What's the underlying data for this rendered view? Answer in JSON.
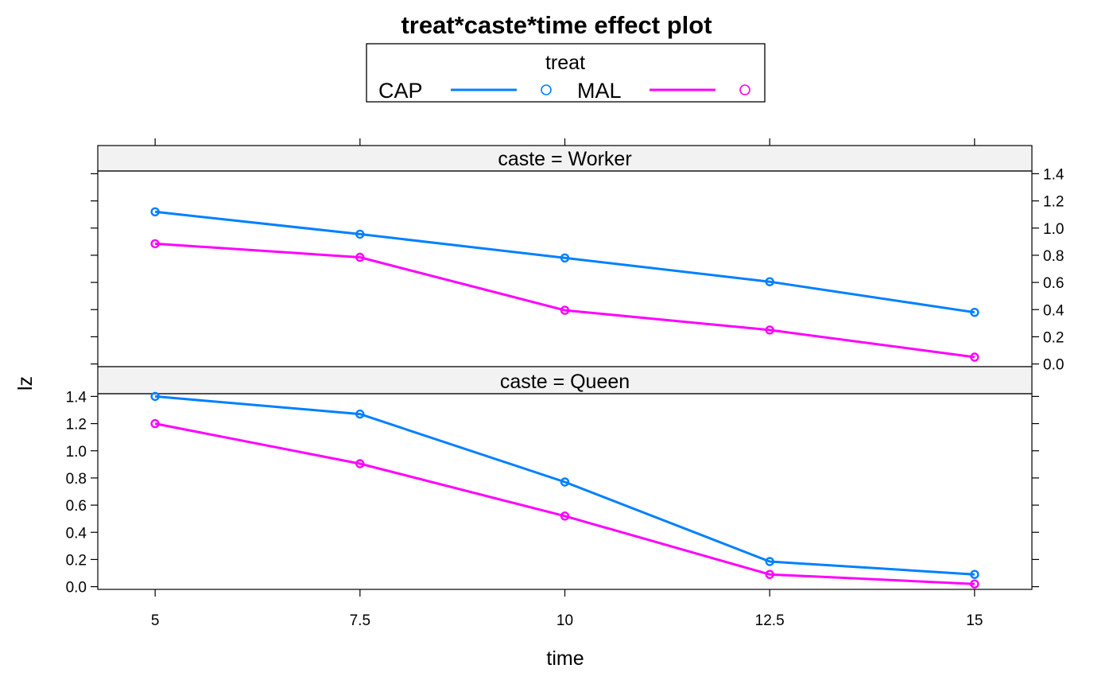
{
  "chart_data": {
    "type": "line",
    "title": "treat*caste*time effect plot",
    "xlabel": "time",
    "ylabel": "lz",
    "x": [
      5,
      7.5,
      10,
      12.5,
      15
    ],
    "x_tick_labels": [
      "5",
      "7.5",
      "10",
      "12.5",
      "15"
    ],
    "xlim": [
      4.3,
      15.7
    ],
    "ylim": [
      -0.02,
      1.42
    ],
    "y_ticks": [
      0.0,
      0.2,
      0.4,
      0.6,
      0.8,
      1.0,
      1.2,
      1.4
    ],
    "y_tick_labels": [
      "0.0",
      "0.2",
      "0.4",
      "0.6",
      "0.8",
      "1.0",
      "1.2",
      "1.4"
    ],
    "grid": false,
    "legend": {
      "title": "treat",
      "placement": "top",
      "entries": [
        {
          "name": "CAP",
          "color": "#0080ff"
        },
        {
          "name": "MAL",
          "color": "#ff00ff"
        }
      ]
    },
    "panels": [
      {
        "strip": "caste = Worker",
        "y_axis_side": "right",
        "series": [
          {
            "name": "CAP",
            "color": "#0080ff",
            "values": [
              1.12,
              0.955,
              0.78,
              0.605,
              0.38
            ]
          },
          {
            "name": "MAL",
            "color": "#ff00ff",
            "values": [
              0.885,
              0.785,
              0.395,
              0.25,
              0.05
            ]
          }
        ]
      },
      {
        "strip": "caste = Queen",
        "y_axis_side": "left",
        "series": [
          {
            "name": "CAP",
            "color": "#0080ff",
            "values": [
              1.4,
              1.27,
              0.77,
              0.185,
              0.09
            ]
          },
          {
            "name": "MAL",
            "color": "#ff00ff",
            "values": [
              1.2,
              0.905,
              0.52,
              0.09,
              0.02
            ]
          }
        ]
      }
    ]
  }
}
